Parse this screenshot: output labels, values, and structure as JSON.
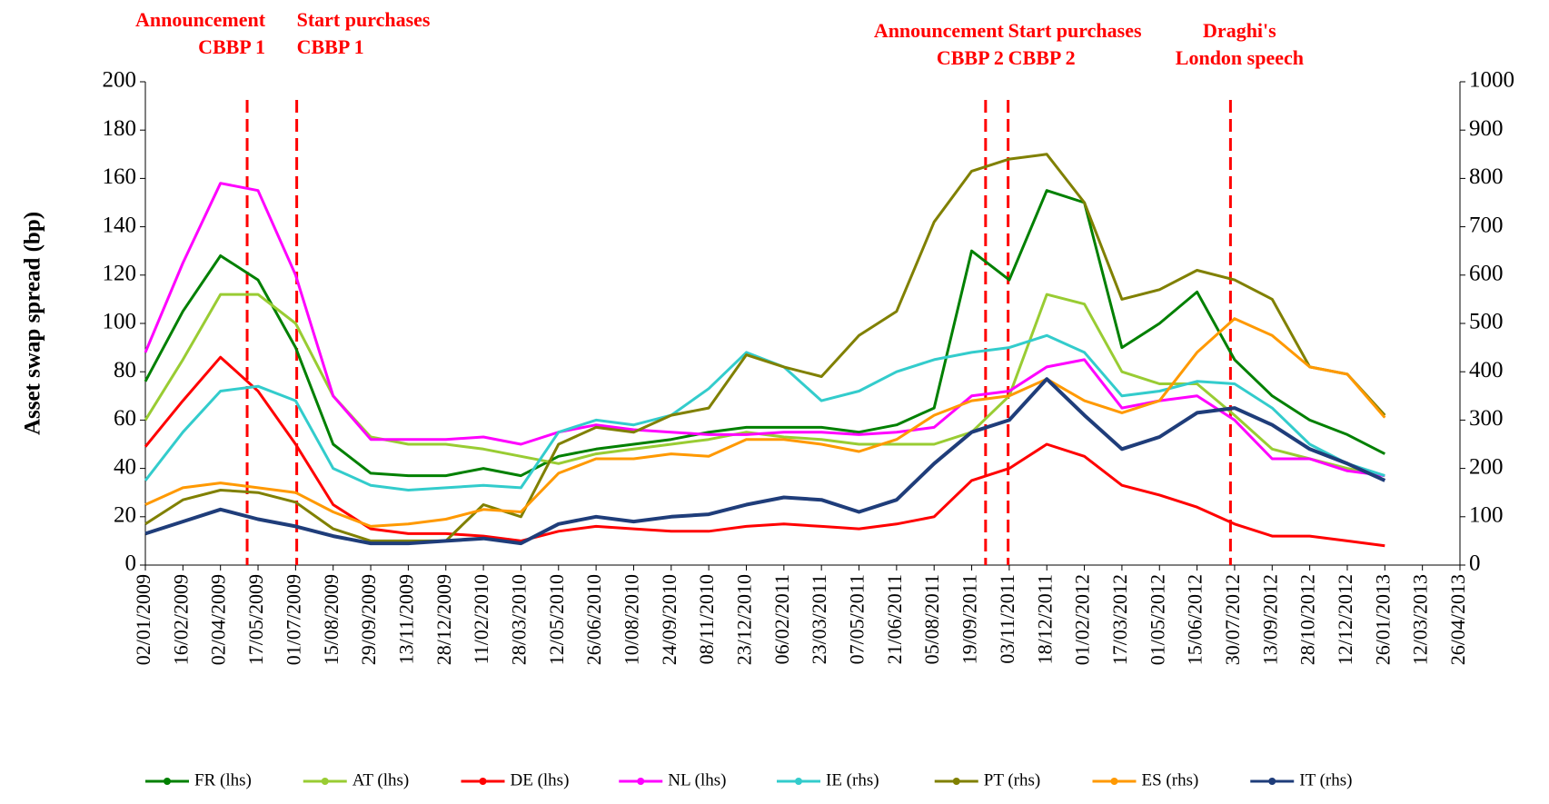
{
  "chart_data": {
    "type": "line",
    "y_label": "Asset swap spread (bp)",
    "categories": [
      "02/01/2009",
      "16/02/2009",
      "02/04/2009",
      "17/05/2009",
      "01/07/2009",
      "15/08/2009",
      "29/09/2009",
      "13/11/2009",
      "28/12/2009",
      "11/02/2010",
      "28/03/2010",
      "12/05/2010",
      "26/06/2010",
      "10/08/2010",
      "24/09/2010",
      "08/11/2010",
      "23/12/2010",
      "06/02/2011",
      "23/03/2011",
      "07/05/2011",
      "21/06/2011",
      "05/08/2011",
      "19/09/2011",
      "03/11/2011",
      "18/12/2011",
      "01/02/2012",
      "17/03/2012",
      "01/05/2012",
      "15/06/2012",
      "30/07/2012",
      "13/09/2012",
      "28/10/2012",
      "12/12/2012",
      "26/01/2013",
      "12/03/2013",
      "26/04/2013"
    ],
    "ylim": [
      0,
      200
    ],
    "yticks": [
      0,
      20,
      40,
      60,
      80,
      100,
      120,
      140,
      160,
      180,
      200
    ],
    "y2lim": [
      0,
      1000
    ],
    "y2ticks": [
      0,
      100,
      200,
      300,
      400,
      500,
      600,
      700,
      800,
      900,
      1000
    ],
    "legend": "bottom",
    "series": [
      {
        "name": "FR (lhs)",
        "color": "#008000",
        "axis": "y",
        "values": [
          76,
          105,
          128,
          118,
          90,
          50,
          38,
          37,
          37,
          40,
          37,
          45,
          48,
          50,
          52,
          55,
          57,
          57,
          57,
          55,
          58,
          65,
          130,
          118,
          155,
          150,
          90,
          100,
          113,
          85,
          70,
          60,
          54,
          46,
          null,
          null
        ]
      },
      {
        "name": "AT (lhs)",
        "color": "#99cc33",
        "axis": "y",
        "values": [
          60,
          85,
          112,
          112,
          100,
          70,
          53,
          50,
          50,
          48,
          45,
          42,
          46,
          48,
          50,
          52,
          55,
          53,
          52,
          50,
          50,
          50,
          55,
          70,
          112,
          108,
          80,
          75,
          75,
          62,
          48,
          44,
          40,
          37,
          null,
          null
        ]
      },
      {
        "name": "DE (lhs)",
        "color": "#ff0000",
        "axis": "y",
        "values": [
          49,
          68,
          86,
          72,
          50,
          25,
          15,
          13,
          13,
          12,
          10,
          14,
          16,
          15,
          14,
          14,
          16,
          17,
          16,
          15,
          17,
          20,
          35,
          40,
          50,
          45,
          33,
          29,
          24,
          17,
          12,
          12,
          10,
          8,
          null,
          null
        ]
      },
      {
        "name": "NL (lhs)",
        "color": "#ff00ff",
        "axis": "y",
        "values": [
          88,
          125,
          158,
          155,
          120,
          70,
          52,
          52,
          52,
          53,
          50,
          55,
          58,
          56,
          55,
          54,
          54,
          55,
          55,
          54,
          55,
          57,
          70,
          72,
          82,
          85,
          65,
          68,
          70,
          60,
          44,
          44,
          39,
          37,
          null,
          null
        ]
      },
      {
        "name": "IE (rhs)",
        "color": "#33cccc",
        "axis": "y2",
        "values": [
          175,
          275,
          360,
          370,
          340,
          200,
          165,
          155,
          160,
          165,
          160,
          275,
          300,
          290,
          310,
          365,
          440,
          410,
          340,
          360,
          400,
          425,
          440,
          450,
          475,
          440,
          350,
          360,
          380,
          375,
          325,
          250,
          210,
          185,
          null,
          null
        ]
      },
      {
        "name": "PT (rhs)",
        "color": "#808000",
        "axis": "y2",
        "values": [
          85,
          135,
          155,
          150,
          130,
          75,
          50,
          50,
          50,
          125,
          100,
          250,
          285,
          275,
          310,
          325,
          435,
          410,
          390,
          475,
          525,
          710,
          815,
          840,
          850,
          750,
          550,
          570,
          610,
          590,
          550,
          410,
          395,
          310,
          null,
          null
        ]
      },
      {
        "name": "ES (rhs)",
        "color": "#ff9900",
        "axis": "y2",
        "values": [
          125,
          160,
          170,
          160,
          150,
          110,
          80,
          85,
          95,
          115,
          110,
          190,
          220,
          220,
          230,
          225,
          260,
          260,
          250,
          235,
          260,
          310,
          340,
          350,
          385,
          340,
          315,
          340,
          440,
          510,
          475,
          410,
          395,
          305,
          null,
          null
        ]
      },
      {
        "name": "IT (rhs)",
        "color": "#1f3d7a",
        "axis": "y2",
        "values": [
          65,
          90,
          115,
          95,
          80,
          60,
          45,
          45,
          50,
          55,
          45,
          85,
          100,
          90,
          100,
          105,
          125,
          140,
          135,
          110,
          135,
          210,
          275,
          300,
          385,
          310,
          240,
          265,
          315,
          325,
          290,
          240,
          210,
          175,
          null,
          null
        ]
      }
    ],
    "annotations": [
      {
        "lines": [
          "Announcement",
          "CBBP 1"
        ],
        "position": 2.71
      },
      {
        "lines": [
          "Start purchases",
          "CBBP 1"
        ],
        "position": 4.03
      },
      {
        "lines": [
          "Announcement",
          "CBBP 2"
        ],
        "position": 22.37
      },
      {
        "lines": [
          "Start purchases",
          "CBBP 2"
        ],
        "position": 22.97
      },
      {
        "lines": [
          "Draghi's",
          "London speech"
        ],
        "position": 28.89
      }
    ]
  }
}
